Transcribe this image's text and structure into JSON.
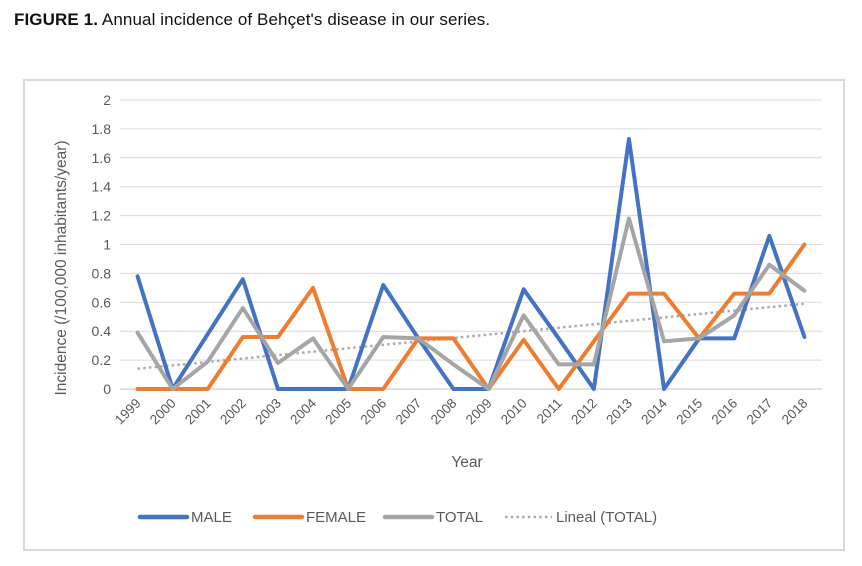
{
  "figure_caption": {
    "label": "FIGURE 1.",
    "text": "Annual incidence of Behçet's disease in our series."
  },
  "chart_data": {
    "type": "line",
    "title": "",
    "x": [
      "1999",
      "2000",
      "2001",
      "2002",
      "2003",
      "2004",
      "2005",
      "2006",
      "2007",
      "2008",
      "2009",
      "2010",
      "2011",
      "2012",
      "2013",
      "2014",
      "2015",
      "2016",
      "2017",
      "2018"
    ],
    "series": [
      {
        "name": "MALE",
        "color": "#4472C4",
        "dash": "solid",
        "values": [
          0.78,
          0,
          0.38,
          0.76,
          0,
          0,
          0,
          0.72,
          0.35,
          0,
          0,
          0.69,
          0.35,
          0,
          1.73,
          0,
          0.35,
          0.35,
          1.06,
          0.36
        ]
      },
      {
        "name": "FEMALE",
        "color": "#ED7D31",
        "dash": "solid",
        "values": [
          0,
          0,
          0,
          0.36,
          0.36,
          0.7,
          0,
          0,
          0.35,
          0.35,
          0,
          0.34,
          0,
          0.33,
          0.66,
          0.66,
          0.35,
          0.66,
          0.66,
          1.0
        ]
      },
      {
        "name": "TOTAL",
        "color": "#A5A5A5",
        "dash": "solid",
        "values": [
          0.39,
          0,
          0.19,
          0.56,
          0.18,
          0.35,
          0,
          0.36,
          0.35,
          0.17,
          0,
          0.51,
          0.17,
          0.17,
          1.18,
          0.33,
          0.35,
          0.51,
          0.86,
          0.68
        ]
      }
    ],
    "trendline": {
      "name": "Lineal (TOTAL)",
      "basis": "TOTAL",
      "color": "#ABABAB",
      "dash": "dotted",
      "start": 0.14,
      "end": 0.59
    },
    "xlabel": "Year",
    "ylabel": "Incidence (/100,000 inhabitants/year)",
    "ylim": [
      0,
      2
    ],
    "ytick_step": 0.2,
    "grid": "horizontal",
    "legend_position": "bottom",
    "legend_entries": [
      "MALE",
      "FEMALE",
      "TOTAL",
      "Lineal (TOTAL)"
    ]
  },
  "style_colors": {
    "axis_text": "#595959",
    "gridline": "#D9D9D9",
    "baseline": "#CFCFCF",
    "frame_border": "#D9D9D9"
  }
}
